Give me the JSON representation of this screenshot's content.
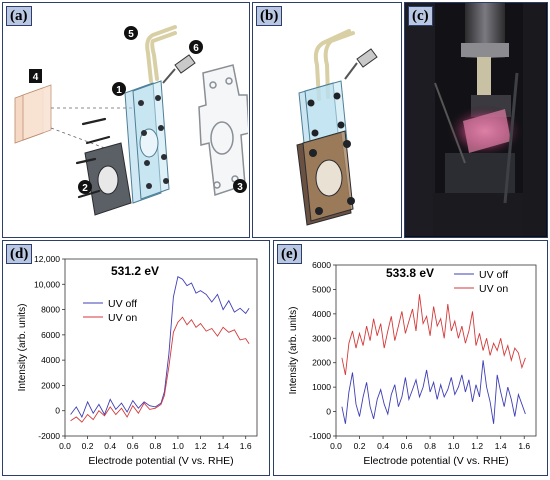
{
  "panels": {
    "a": {
      "tag": "(a)",
      "callouts": [
        "1",
        "2",
        "3",
        "4",
        "5",
        "6"
      ]
    },
    "b": {
      "tag": "(b)"
    },
    "c": {
      "tag": "(c)"
    },
    "d": {
      "tag": "(d)"
    },
    "e": {
      "tag": "(e)"
    }
  },
  "colors": {
    "uv_off": "#3f3fb5",
    "uv_on": "#d43a3a",
    "panel_border": "#2d3e6b",
    "tag_bg": "#b9c7e3"
  },
  "chart_data": [
    {
      "type": "line",
      "title": "531.2 eV",
      "xlabel": "Electrode potential (V vs. RHE)",
      "ylabel": "Intensity (arb. units)",
      "xlim": [
        0,
        1.7
      ],
      "ylim": [
        -2000,
        12000
      ],
      "xticks": [
        "0.0",
        "0.2",
        "0.4",
        "0.6",
        "0.8",
        "1.0",
        "1.2",
        "1.4",
        "1.6"
      ],
      "yticks": [
        "-2000",
        "0",
        "2000",
        "4000",
        "6000",
        "8000",
        "10,000",
        "12,000"
      ],
      "legend_position": "left",
      "grid": false,
      "series": [
        {
          "name": "UV off",
          "x": [
            0.05,
            0.1,
            0.15,
            0.2,
            0.25,
            0.3,
            0.35,
            0.4,
            0.45,
            0.5,
            0.55,
            0.6,
            0.65,
            0.7,
            0.75,
            0.8,
            0.85,
            0.88,
            0.92,
            0.96,
            1.0,
            1.04,
            1.08,
            1.12,
            1.16,
            1.2,
            1.25,
            1.3,
            1.35,
            1.4,
            1.45,
            1.5,
            1.55,
            1.6,
            1.63
          ],
          "y": [
            -300,
            300,
            -500,
            700,
            -200,
            500,
            -300,
            900,
            100,
            600,
            -100,
            800,
            200,
            700,
            400,
            300,
            600,
            1500,
            4500,
            9000,
            10600,
            10400,
            9900,
            10100,
            9300,
            9500,
            9200,
            8600,
            9200,
            8000,
            8700,
            7800,
            8100,
            7700,
            8100
          ]
        },
        {
          "name": "UV on",
          "x": [
            0.05,
            0.1,
            0.15,
            0.2,
            0.25,
            0.3,
            0.35,
            0.4,
            0.45,
            0.5,
            0.55,
            0.6,
            0.65,
            0.7,
            0.75,
            0.8,
            0.85,
            0.88,
            0.92,
            0.96,
            1.0,
            1.04,
            1.08,
            1.12,
            1.16,
            1.2,
            1.25,
            1.3,
            1.35,
            1.4,
            1.45,
            1.5,
            1.55,
            1.6,
            1.63
          ],
          "y": [
            -800,
            -500,
            -900,
            -300,
            -700,
            0,
            -400,
            300,
            -300,
            200,
            -500,
            400,
            -200,
            600,
            100,
            200,
            500,
            1200,
            3500,
            6200,
            7000,
            7400,
            6800,
            7200,
            6600,
            6900,
            6300,
            6500,
            5900,
            6600,
            6200,
            6400,
            5600,
            5700,
            5300
          ]
        }
      ]
    },
    {
      "type": "line",
      "title": "533.8 eV",
      "xlabel": "Electrode potential (V vs. RHE)",
      "ylabel": "Intensity (arb. units)",
      "xlim": [
        0,
        1.7
      ],
      "ylim": [
        -1000,
        6000
      ],
      "xticks": [
        "0.0",
        "0.2",
        "0.4",
        "0.6",
        "0.8",
        "1.0",
        "1.2",
        "1.4",
        "1.6"
      ],
      "yticks": [
        "-1000",
        "0",
        "1000",
        "2000",
        "3000",
        "4000",
        "5000",
        "6000"
      ],
      "legend_position": "top-right",
      "grid": false,
      "series": [
        {
          "name": "UV off",
          "x": [
            0.05,
            0.08,
            0.11,
            0.14,
            0.17,
            0.2,
            0.23,
            0.26,
            0.29,
            0.32,
            0.35,
            0.38,
            0.41,
            0.44,
            0.47,
            0.5,
            0.53,
            0.56,
            0.59,
            0.62,
            0.65,
            0.68,
            0.71,
            0.74,
            0.77,
            0.8,
            0.83,
            0.86,
            0.89,
            0.92,
            0.95,
            0.98,
            1.01,
            1.04,
            1.07,
            1.1,
            1.13,
            1.16,
            1.19,
            1.22,
            1.25,
            1.28,
            1.31,
            1.34,
            1.37,
            1.4,
            1.43,
            1.46,
            1.49,
            1.52,
            1.55,
            1.58,
            1.61
          ],
          "y": [
            200,
            -500,
            800,
            1600,
            300,
            -200,
            600,
            1200,
            200,
            -300,
            500,
            900,
            300,
            -100,
            700,
            1100,
            200,
            600,
            1400,
            500,
            900,
            1300,
            600,
            1000,
            1700,
            800,
            1200,
            500,
            1100,
            600,
            900,
            1400,
            700,
            1000,
            1500,
            800,
            1300,
            400,
            1100,
            600,
            2100,
            1000,
            400,
            -500,
            1500,
            800,
            200,
            1000,
            500,
            -200,
            700,
            300,
            -100
          ]
        },
        {
          "name": "UV on",
          "x": [
            0.05,
            0.08,
            0.11,
            0.14,
            0.17,
            0.2,
            0.23,
            0.26,
            0.29,
            0.32,
            0.35,
            0.38,
            0.41,
            0.44,
            0.47,
            0.5,
            0.53,
            0.56,
            0.59,
            0.62,
            0.65,
            0.68,
            0.71,
            0.74,
            0.77,
            0.8,
            0.83,
            0.86,
            0.89,
            0.92,
            0.95,
            0.98,
            1.01,
            1.04,
            1.07,
            1.1,
            1.13,
            1.16,
            1.19,
            1.22,
            1.25,
            1.28,
            1.31,
            1.34,
            1.37,
            1.4,
            1.43,
            1.46,
            1.49,
            1.52,
            1.55,
            1.58,
            1.61
          ],
          "y": [
            2200,
            1500,
            2800,
            3300,
            2600,
            3200,
            2700,
            3500,
            2900,
            3800,
            3100,
            3600,
            2600,
            3300,
            3900,
            2900,
            3500,
            4100,
            3200,
            3700,
            4200,
            3300,
            4800,
            3600,
            3900,
            3100,
            4300,
            3500,
            3800,
            3000,
            4400,
            3300,
            3700,
            3000,
            3500,
            2800,
            3300,
            4100,
            2700,
            3200,
            2500,
            3000,
            2300,
            2800,
            2500,
            3000,
            2300,
            2700,
            2100,
            2600,
            2400,
            1800,
            2200
          ]
        }
      ]
    }
  ]
}
